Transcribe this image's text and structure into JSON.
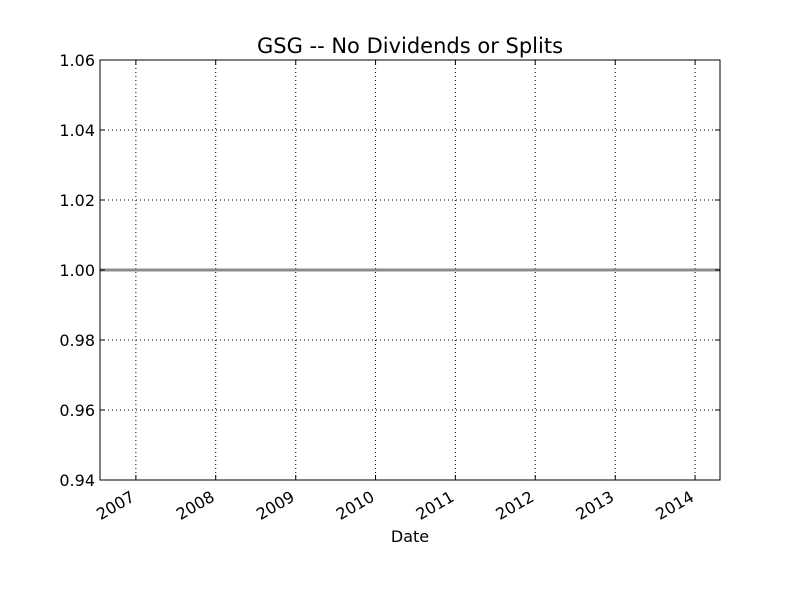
{
  "chart_data": {
    "type": "line",
    "title": "GSG -- No Dividends or Splits",
    "xlabel": "Date",
    "ylabel": "",
    "xlim": [
      "2006-07-21",
      "2014-04-25"
    ],
    "ylim": [
      0.94,
      1.06
    ],
    "x_ticks": [
      "2007",
      "2008",
      "2009",
      "2010",
      "2011",
      "2012",
      "2013",
      "2014"
    ],
    "y_ticks": [
      "0.94",
      "0.96",
      "0.98",
      "1.00",
      "1.02",
      "1.04",
      "1.06"
    ],
    "grid": true,
    "series": [
      {
        "x": [
          "2006-07-21",
          "2014-04-25"
        ],
        "y": [
          1.0,
          1.0
        ],
        "color": "#8c8c8c"
      }
    ]
  }
}
